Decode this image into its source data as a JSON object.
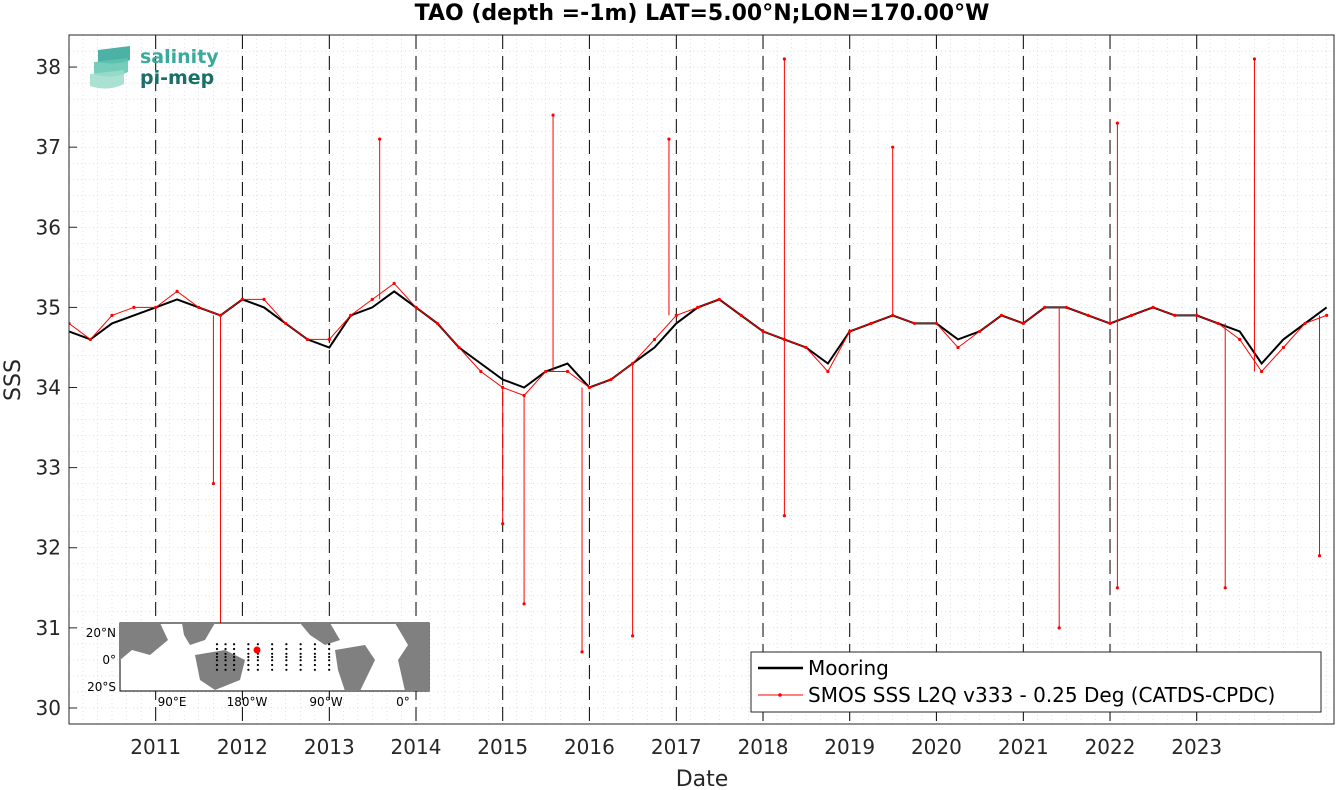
{
  "chart_data": {
    "type": "line",
    "title": "TAO (depth =-1m) LAT=5.00°N;LON=170.00°W",
    "xlabel": "Date",
    "ylabel": "SSS",
    "ylim": [
      29.8,
      38.4
    ],
    "xlim": [
      "2010-01-01",
      "2024-08-01"
    ],
    "y_ticks": [
      "30",
      "31",
      "32",
      "33",
      "34",
      "35",
      "36",
      "37",
      "38"
    ],
    "x_ticks": [
      "2011",
      "2012",
      "2013",
      "2014",
      "2015",
      "2016",
      "2017",
      "2018",
      "2019",
      "2020",
      "2021",
      "2022",
      "2023"
    ],
    "year_boundary_lines": "dashed",
    "grid": "minor dotted",
    "legend_position": "bottom-right",
    "series": [
      {
        "name": "Mooring",
        "color": "#000000",
        "x": [
          "2010-01",
          "2010-04",
          "2010-07",
          "2010-10",
          "2011-01",
          "2011-04",
          "2011-07",
          "2011-10",
          "2012-01",
          "2012-04",
          "2012-07",
          "2012-10",
          "2013-01",
          "2013-04",
          "2013-07",
          "2013-10",
          "2014-01",
          "2014-04",
          "2014-07",
          "2014-10",
          "2015-01",
          "2015-04",
          "2015-07",
          "2015-10",
          "2016-01",
          "2016-04",
          "2016-07",
          "2016-10",
          "2017-01",
          "2017-04",
          "2017-07",
          "2017-10",
          "2018-01",
          "2018-04",
          "2018-07",
          "2018-10",
          "2019-01",
          "2019-04",
          "2019-07",
          "2019-10",
          "2020-01",
          "2020-04",
          "2020-07",
          "2020-10",
          "2021-01",
          "2021-04",
          "2021-07",
          "2021-10",
          "2022-01",
          "2022-04",
          "2022-07",
          "2022-10",
          "2023-01",
          "2023-04",
          "2023-07",
          "2023-10",
          "2024-01",
          "2024-04",
          "2024-07"
        ],
        "values": [
          34.7,
          34.6,
          34.8,
          34.9,
          35.0,
          35.1,
          35.0,
          34.9,
          35.1,
          35.0,
          34.8,
          34.6,
          34.5,
          34.9,
          35.0,
          35.2,
          35.0,
          34.8,
          34.5,
          34.3,
          34.1,
          34.0,
          34.2,
          34.3,
          34.0,
          34.1,
          34.3,
          34.5,
          34.8,
          35.0,
          35.1,
          34.9,
          34.7,
          34.6,
          34.5,
          34.3,
          34.7,
          34.8,
          34.9,
          34.8,
          34.8,
          34.6,
          34.7,
          34.9,
          34.8,
          35.0,
          35.0,
          34.9,
          34.8,
          34.9,
          35.0,
          34.9,
          34.9,
          34.8,
          34.7,
          34.3,
          34.6,
          34.8,
          35.0
        ]
      },
      {
        "name": "SMOS SSS L2Q v333 - 0.25 Deg (CATDS-CPDC)",
        "color": "#ff0000",
        "x": [
          "2010-01",
          "2010-04",
          "2010-07",
          "2010-10",
          "2011-01",
          "2011-04",
          "2011-07",
          "2011-10",
          "2012-01",
          "2012-04",
          "2012-07",
          "2012-10",
          "2013-01",
          "2013-04",
          "2013-07",
          "2013-10",
          "2014-01",
          "2014-04",
          "2014-07",
          "2014-10",
          "2015-01",
          "2015-04",
          "2015-07",
          "2015-10",
          "2016-01",
          "2016-04",
          "2016-07",
          "2016-10",
          "2017-01",
          "2017-04",
          "2017-07",
          "2017-10",
          "2018-01",
          "2018-04",
          "2018-07",
          "2018-10",
          "2019-01",
          "2019-04",
          "2019-07",
          "2019-10",
          "2020-01",
          "2020-04",
          "2020-07",
          "2020-10",
          "2021-01",
          "2021-04",
          "2021-07",
          "2021-10",
          "2022-01",
          "2022-04",
          "2022-07",
          "2022-10",
          "2023-01",
          "2023-04",
          "2023-07",
          "2023-10",
          "2024-01",
          "2024-04",
          "2024-07"
        ],
        "values": [
          34.8,
          34.6,
          34.9,
          35.0,
          35.0,
          35.2,
          35.0,
          34.9,
          35.1,
          35.1,
          34.8,
          34.6,
          34.6,
          34.9,
          35.1,
          35.3,
          35.0,
          34.8,
          34.5,
          34.2,
          34.0,
          33.9,
          34.2,
          34.2,
          34.0,
          34.1,
          34.3,
          34.6,
          34.9,
          35.0,
          35.1,
          34.9,
          34.7,
          34.6,
          34.5,
          34.2,
          34.7,
          34.8,
          34.9,
          34.8,
          34.8,
          34.5,
          34.7,
          34.9,
          34.8,
          35.0,
          35.0,
          34.9,
          34.8,
          34.9,
          35.0,
          34.9,
          34.9,
          34.8,
          34.6,
          34.2,
          34.5,
          34.8,
          34.9
        ],
        "extremes": [
          {
            "x": "2011-10",
            "y": 30.9
          },
          {
            "x": "2011-09",
            "y": 32.8
          },
          {
            "x": "2013-08",
            "y": 37.1
          },
          {
            "x": "2015-01",
            "y": 32.3
          },
          {
            "x": "2015-04",
            "y": 31.3
          },
          {
            "x": "2015-08",
            "y": 37.4
          },
          {
            "x": "2015-12",
            "y": 30.7
          },
          {
            "x": "2016-07",
            "y": 30.9
          },
          {
            "x": "2016-12",
            "y": 37.1
          },
          {
            "x": "2018-04",
            "y": 38.1
          },
          {
            "x": "2018-04",
            "y": 32.4
          },
          {
            "x": "2019-07",
            "y": 37.0
          },
          {
            "x": "2021-06",
            "y": 31.0
          },
          {
            "x": "2022-02",
            "y": 37.3
          },
          {
            "x": "2022-02",
            "y": 31.5
          },
          {
            "x": "2023-05",
            "y": 31.5
          },
          {
            "x": "2023-09",
            "y": 38.1
          },
          {
            "x": "2024-06",
            "y": 31.9
          }
        ]
      }
    ]
  },
  "logo": {
    "line1": "salinity",
    "line2": "pi-mep",
    "color1": "#3aaa9b",
    "color2": "#1b6f6a"
  },
  "inset_map": {
    "y_labels": [
      "20°N",
      "0°",
      "20°S"
    ],
    "x_labels": [
      "90°E",
      "180°W",
      "90°W",
      "0°"
    ],
    "marker_color": "#ff0000",
    "land_color": "#808080"
  }
}
